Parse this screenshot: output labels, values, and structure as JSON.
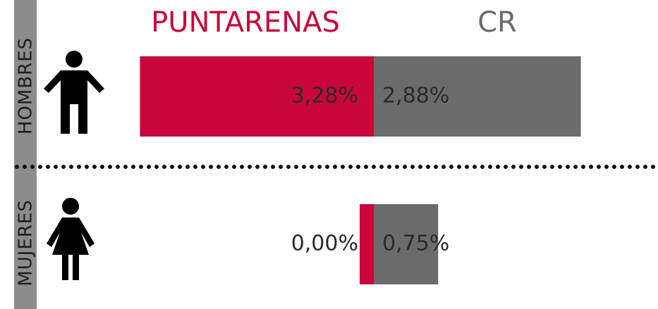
{
  "chart_data": {
    "type": "butterfly_bar",
    "categories": [
      "HOMBRES",
      "MUJERES"
    ],
    "series": [
      {
        "name": "PUNTARENAS",
        "color": "#c8063b",
        "values": [
          3.28,
          0.0
        ],
        "value_labels": [
          "3,28%",
          "0,00%"
        ]
      },
      {
        "name": "CR",
        "color": "#6b6b6b",
        "values": [
          2.88,
          0.75
        ],
        "value_labels": [
          "2,88%",
          "0,75%"
        ]
      }
    ]
  }
}
